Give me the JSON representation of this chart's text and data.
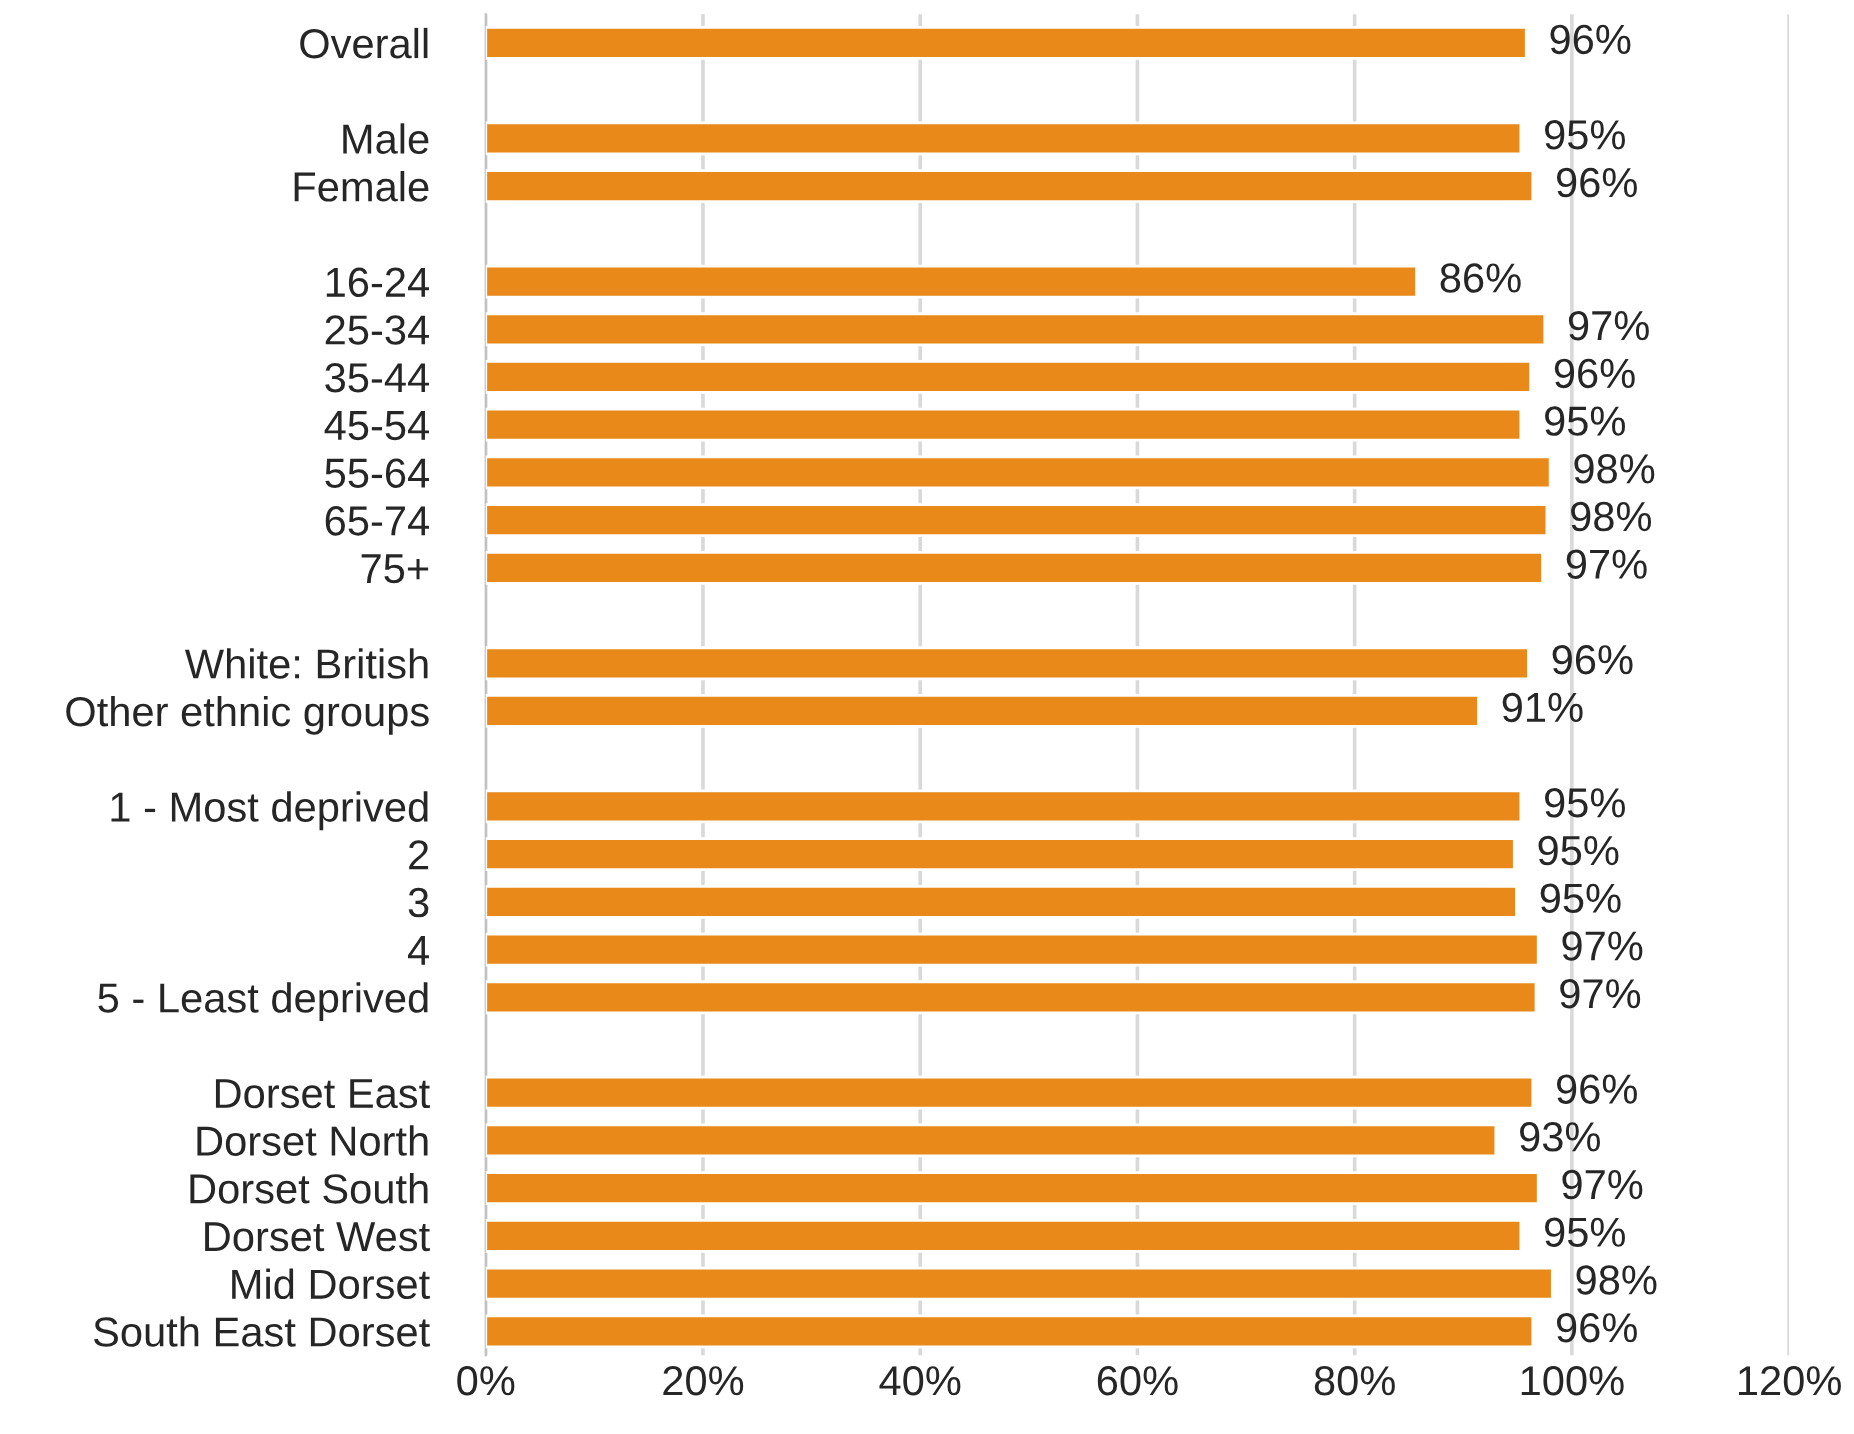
{
  "chart_data": {
    "type": "bar",
    "orientation": "horizontal",
    "color": "#e8891a",
    "categories": [
      "Overall",
      null,
      "Male",
      "Female",
      null,
      "16-24",
      "25-34",
      "35-44",
      "45-54",
      "55-64",
      "65-74",
      "75+",
      null,
      "White: British",
      "Other ethnic groups",
      null,
      "1 - Most deprived",
      "2",
      "3",
      "4",
      "5 - Least deprived",
      null,
      "Dorset East",
      "Dorset North",
      "Dorset South",
      "Dorset West",
      "Mid Dorset",
      "South East Dorset"
    ],
    "values": [
      95.8,
      null,
      95.3,
      96.4,
      null,
      85.7,
      97.5,
      96.2,
      95.3,
      98.0,
      97.7,
      97.3,
      null,
      96.0,
      91.4,
      null,
      95.3,
      94.7,
      94.9,
      96.9,
      96.7,
      null,
      96.4,
      93.0,
      96.9,
      95.3,
      98.2,
      96.4
    ],
    "value_labels": [
      "96%",
      null,
      "95%",
      "96%",
      null,
      "86%",
      "97%",
      "96%",
      "95%",
      "98%",
      "98%",
      "97%",
      null,
      "96%",
      "91%",
      null,
      "95%",
      "95%",
      "95%",
      "97%",
      "97%",
      null,
      "96%",
      "93%",
      "97%",
      "95%",
      "98%",
      "96%"
    ],
    "xlim": [
      0,
      120
    ],
    "xticks": [
      {
        "value": 0,
        "label": "0%"
      },
      {
        "value": 20,
        "label": "20%"
      },
      {
        "value": 40,
        "label": "40%"
      },
      {
        "value": 60,
        "label": "60%"
      },
      {
        "value": 80,
        "label": "80%"
      },
      {
        "value": 100,
        "label": "100%"
      },
      {
        "value": 120,
        "label": "120%"
      }
    ],
    "grid": "x"
  }
}
